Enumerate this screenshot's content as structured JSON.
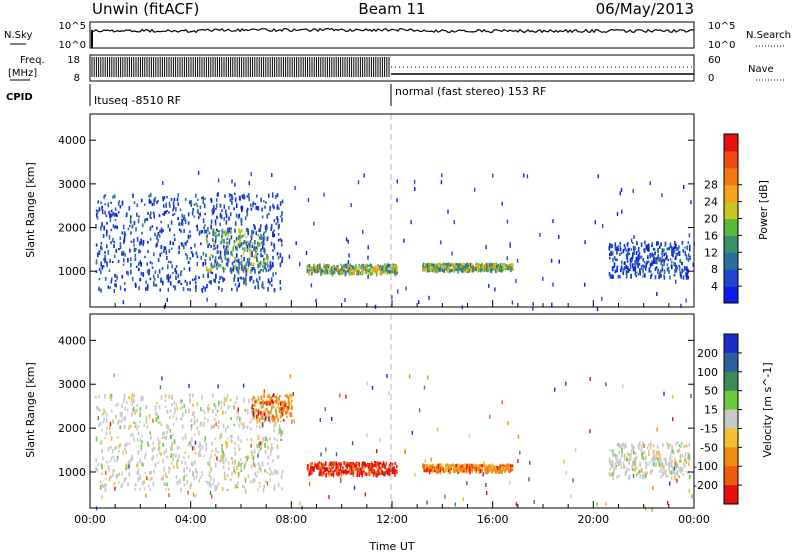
{
  "header": {
    "station": "Unwin (fitACF)",
    "beam": "Beam 11",
    "date": "06/May/2013"
  },
  "noise_panel": {
    "left_label": "N.Sky",
    "right_label": "N.Search",
    "left_ticks": [
      "10^5",
      "10^0"
    ],
    "right_ticks": [
      "10^5",
      "10^0"
    ]
  },
  "freq_panel": {
    "left_label_line1": "Freq.",
    "left_label_line2": "[MHz]",
    "right_label": "Nave",
    "left_ticks": [
      "18",
      "8"
    ],
    "right_ticks": [
      "60",
      "0"
    ]
  },
  "cpid": {
    "label": "CPID",
    "mode1": "Ituseq -8510 RF",
    "mode2": "normal (fast stereo) 153 RF"
  },
  "x_axis": {
    "label": "Time UT",
    "ticks": [
      "00:00",
      "04:00",
      "08:00",
      "12:00",
      "16:00",
      "20:00",
      "00:00"
    ]
  },
  "chart_data": [
    {
      "type": "heatmap",
      "title": "Power",
      "ylabel": "Slant Range [km]",
      "xlabel": "Time UT",
      "x_range_hours": [
        0,
        24
      ],
      "ylim": [
        180,
        4600
      ],
      "y_ticks": [
        1000,
        2000,
        3000,
        4000
      ],
      "colorbar": {
        "label": "Power [dB]",
        "ticks": [
          "4",
          "8",
          "12",
          "16",
          "20",
          "24",
          "28"
        ],
        "colors": [
          "#0b1fe8",
          "#2244cc",
          "#2e6e9c",
          "#3a9068",
          "#5cb836",
          "#c8c81e",
          "#f4a31a",
          "#f07a14",
          "#ee4a10",
          "#e61010"
        ]
      },
      "regions": [
        {
          "t": [
            0.2,
            7.6
          ],
          "r": [
            600,
            2800
          ],
          "level": "low"
        },
        {
          "t": [
            4.6,
            7.0
          ],
          "r": [
            1000,
            2000
          ],
          "level": "mid"
        },
        {
          "t": [
            8.6,
            12.2
          ],
          "r": [
            980,
            1180
          ],
          "level": "mid-high"
        },
        {
          "t": [
            13.2,
            16.8
          ],
          "r": [
            1050,
            1200
          ],
          "level": "mid-high"
        },
        {
          "t": [
            20.6,
            23.8
          ],
          "r": [
            900,
            1700
          ],
          "level": "low"
        }
      ]
    },
    {
      "type": "heatmap",
      "title": "Velocity",
      "ylabel": "Slant Range [km]",
      "xlabel": "Time UT",
      "x_range_hours": [
        0,
        24
      ],
      "ylim": [
        180,
        4600
      ],
      "y_ticks": [
        1000,
        2000,
        3000,
        4000
      ],
      "colorbar": {
        "label": "Velocity [m s^-1]",
        "ticks": [
          "200",
          "100",
          "50",
          "15",
          "-15",
          "-50",
          "-100",
          "-200"
        ],
        "colors": [
          "#1b2fc8",
          "#2c5f9c",
          "#3a8a5a",
          "#6cc83c",
          "#c8c8c8",
          "#f0c030",
          "#f08c14",
          "#ee5a10",
          "#e60f0f"
        ]
      },
      "regions": [
        {
          "t": [
            0.2,
            7.6
          ],
          "r": [
            600,
            2800
          ],
          "level": "near-zero"
        },
        {
          "t": [
            6.4,
            8.0
          ],
          "r": [
            2200,
            2800
          ],
          "level": "negative"
        },
        {
          "t": [
            8.6,
            12.2
          ],
          "r": [
            980,
            1250
          ],
          "level": "strong-negative"
        },
        {
          "t": [
            13.2,
            16.8
          ],
          "r": [
            1050,
            1200
          ],
          "level": "negative"
        },
        {
          "t": [
            20.6,
            23.8
          ],
          "r": [
            900,
            1700
          ],
          "level": "near-zero"
        }
      ]
    }
  ]
}
